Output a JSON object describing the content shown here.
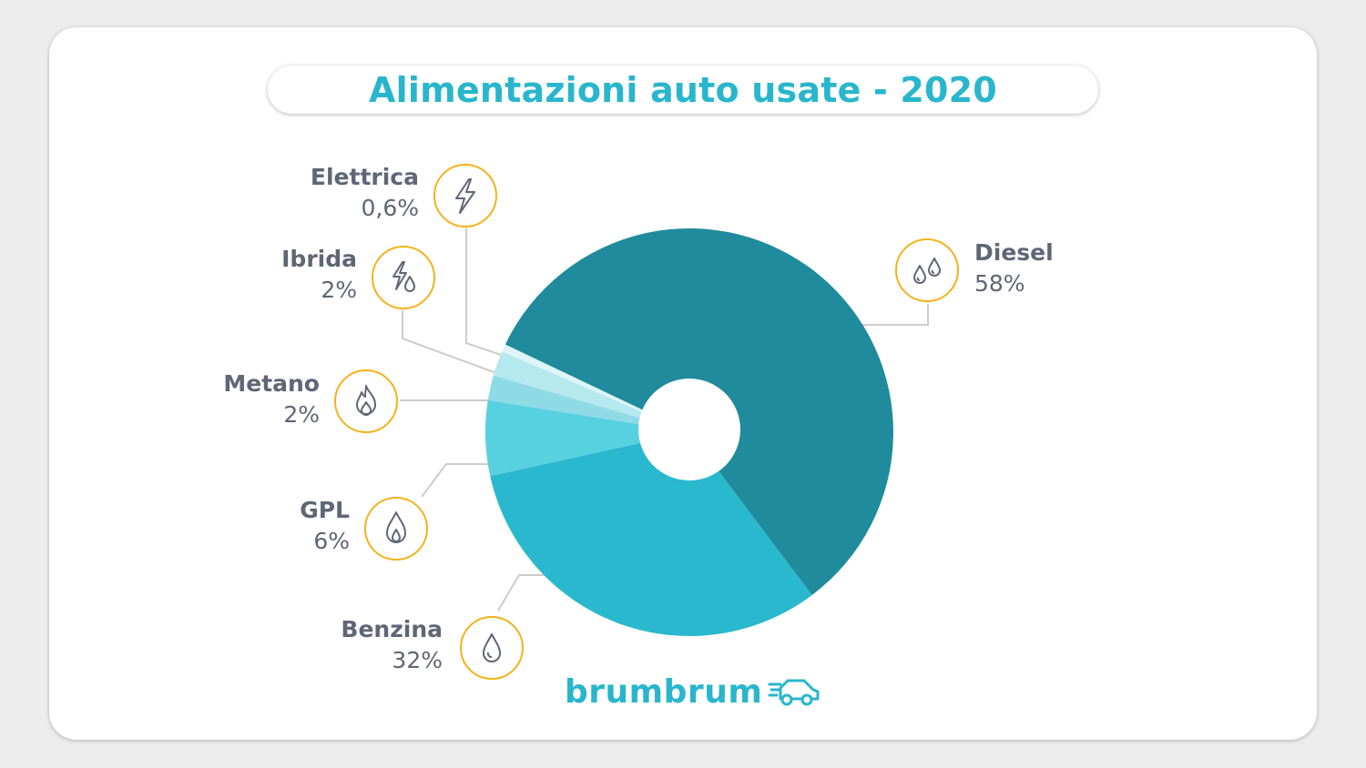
{
  "title": "Alimentazioni auto usate - 2020",
  "brand": {
    "name": "brumbrum",
    "color": "#29b6cc",
    "icon": "car-speed-icon"
  },
  "colors": {
    "title": "#29b6cc",
    "text": "#5f6675",
    "icon_ring": "#f5b21b",
    "leader": "#cccccc"
  },
  "chart_data": {
    "type": "pie",
    "donut": true,
    "slices": [
      {
        "name": "Diesel",
        "label": "58%",
        "value": 58,
        "color": "#1f8b9c",
        "icon": "double-drop-icon"
      },
      {
        "name": "Benzina",
        "label": "32%",
        "value": 32,
        "color": "#29b8ce",
        "icon": "drop-icon"
      },
      {
        "name": "GPL",
        "label": "6%",
        "value": 6,
        "color": "#57d0e0",
        "icon": "gas-flame-icon"
      },
      {
        "name": "Metano",
        "label": "2%",
        "value": 2,
        "color": "#8edbe6",
        "icon": "fire-icon"
      },
      {
        "name": "Ibrida",
        "label": "2%",
        "value": 2,
        "color": "#b5e8ef",
        "icon": "bolt-drop-icon"
      },
      {
        "name": "Elettrica",
        "label": "0,6%",
        "value": 0.6,
        "color": "#def5f8",
        "icon": "bolt-icon"
      }
    ]
  }
}
